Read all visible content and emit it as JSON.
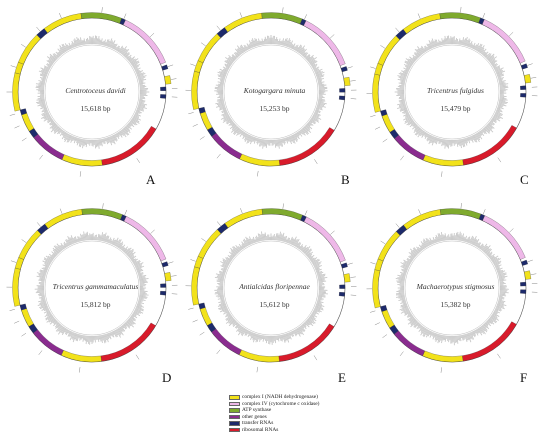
{
  "colors": {
    "complex_I": "#f2e21a",
    "complex_IV": "#eeb8e8",
    "atp": "#7faa2e",
    "other": "#8a2c8f",
    "trna": "#1d2a6b",
    "rrna": "#d81b2b",
    "backbone": "#555555",
    "gc_ring": "#c8c8c8"
  },
  "panels": [
    {
      "letter": "A",
      "species": "Centrotoceus davidi",
      "length": "15,618 bp"
    },
    {
      "letter": "B",
      "species": "Kotogargara minuta",
      "length": "15,253 bp"
    },
    {
      "letter": "C",
      "species": "Tricentrus fulgidus",
      "length": "15,479 bp"
    },
    {
      "letter": "D",
      "species": "Tricentrus gammamaculatus",
      "length": "15,812 bp"
    },
    {
      "letter": "E",
      "species": "Antialcidas floripennae",
      "length": "15,612 bp"
    },
    {
      "letter": "F",
      "species": "Machaerotypus stigmosus",
      "length": "15,382 bp"
    }
  ],
  "legend": [
    {
      "color_key": "complex_I",
      "label": "complex I (NADH dehydrogenase)"
    },
    {
      "color_key": "complex_IV",
      "label": "complex IV (cytochrome c oxidase)"
    },
    {
      "color_key": "atp",
      "label": "ATP synthase"
    },
    {
      "color_key": "other",
      "label": "other genes"
    },
    {
      "color_key": "trna",
      "label": "transfer RNAs"
    },
    {
      "color_key": "rrna",
      "label": "ribosomal RNAs"
    }
  ]
}
